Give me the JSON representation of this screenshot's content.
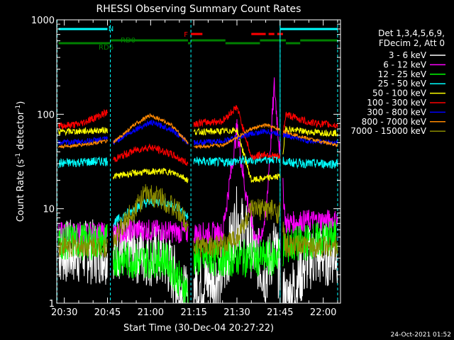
{
  "chart_data": {
    "type": "line",
    "title": "RHESSI Observing Summary Count Rates",
    "xlabel": "Start Time (30-Dec-04 20:27:22)",
    "ylabel": "Count Rate (s",
    "ylabel_sup": "-1",
    "ylabel_tail": " detector",
    "ylabel_close": ")",
    "y_scale": "log",
    "ylim": [
      1,
      1000
    ],
    "xlim": [
      "20:27:22",
      "22:06:00"
    ],
    "x_ticks": [
      "20:30",
      "20:45",
      "21:00",
      "21:15",
      "21:30",
      "21:45",
      "22:00"
    ],
    "y_ticks": [
      "1",
      "10",
      "100",
      "1000"
    ],
    "legend_position": "right",
    "legend_header": [
      "Det 1,3,4,5,6,9,",
      "FDecim 2, Att 0"
    ],
    "footer_date": "24-Oct-2021 01:52",
    "state_bars": {
      "N_label": "N",
      "F_label": "F",
      "RD0_label": "RD0",
      "RD6_label": "RD6",
      "N": [
        [
          "20:28",
          "20:45"
        ],
        [
          "21:45",
          "22:05"
        ]
      ],
      "F": [
        [
          "21:14",
          "21:18"
        ],
        [
          "21:35",
          "21:40"
        ],
        [
          "21:41",
          "21:43"
        ],
        [
          "21:44",
          "21:46"
        ]
      ],
      "RD0": [
        [
          "20:46",
          "21:13"
        ],
        [
          "21:14",
          "21:26"
        ],
        [
          "21:38",
          "21:47"
        ],
        [
          "21:52",
          "22:05"
        ]
      ],
      "RD6": [
        [
          "20:28",
          "20:46"
        ],
        [
          "21:13",
          "21:14"
        ],
        [
          "21:26",
          "21:38"
        ],
        [
          "21:47",
          "21:52"
        ]
      ]
    },
    "time_markers": [
      "20:27:30",
      "20:46",
      "21:14",
      "21:45",
      "22:05"
    ],
    "gaps": [
      [
        "20:45",
        "20:47"
      ],
      [
        "21:13",
        "21:15"
      ],
      [
        "21:45",
        "21:46"
      ]
    ],
    "series": [
      {
        "name": "3 - 6 keV",
        "color": "#ffffff",
        "x": [
          "20:27",
          "20:35",
          "20:45",
          "20:47",
          "20:55",
          "21:05",
          "21:13",
          "21:15",
          "21:25",
          "21:30",
          "21:35",
          "21:40",
          "21:43",
          "21:47",
          "21:55",
          "22:05"
        ],
        "values": [
          3.5,
          3.5,
          3.5,
          4,
          3.5,
          3,
          1,
          1.5,
          2,
          8,
          4,
          2,
          4,
          1,
          3,
          3.5
        ],
        "noise": 0.35
      },
      {
        "name": "6 - 12 keV",
        "color": "#ff00ff",
        "x": [
          "20:27",
          "20:35",
          "20:45",
          "20:47",
          "20:55",
          "21:05",
          "21:13",
          "21:15",
          "21:25",
          "21:30",
          "21:33",
          "21:37",
          "21:40",
          "21:43",
          "21:47",
          "21:55",
          "22:05"
        ],
        "values": [
          5.5,
          5.5,
          5.5,
          5.5,
          6,
          5.8,
          5.5,
          5.5,
          5.5,
          70,
          15,
          4,
          8,
          200,
          7,
          7.5,
          7.5
        ],
        "noise": 0.12
      },
      {
        "name": "12 - 25 keV",
        "color": "#00ff00",
        "x": [
          "20:27",
          "20:35",
          "20:45",
          "20:47",
          "20:55",
          "21:05",
          "21:13",
          "21:15",
          "21:25",
          "21:30",
          "21:35",
          "21:40",
          "21:43",
          "21:47",
          "21:55",
          "22:05"
        ],
        "values": [
          4.5,
          4.5,
          4.5,
          3,
          2.8,
          3,
          1.3,
          3,
          3,
          3,
          3,
          3,
          3,
          4,
          4.5,
          5
        ],
        "noise": 0.2
      },
      {
        "name": "25 - 50 keV",
        "color": "#00ffff",
        "x": [
          "20:27",
          "20:35",
          "20:45",
          "20:47",
          "20:52",
          "20:58",
          "21:04",
          "21:10",
          "21:13",
          "21:15",
          "21:25",
          "21:35",
          "21:45",
          "21:47",
          "21:55",
          "22:05"
        ],
        "values": [
          30,
          31,
          32,
          7,
          9,
          11.5,
          12,
          10,
          8,
          32,
          31,
          33,
          34,
          31,
          30,
          30
        ],
        "noise": 0.05
      },
      {
        "name": "50 - 100 keV",
        "color": "#ffff00",
        "x": [
          "20:27",
          "20:35",
          "20:45",
          "20:47",
          "20:55",
          "21:05",
          "21:10",
          "21:13",
          "21:15",
          "21:25",
          "21:30",
          "21:35",
          "21:40",
          "21:45",
          "21:47",
          "21:55",
          "22:05"
        ],
        "values": [
          65,
          66,
          68,
          22,
          24,
          25,
          23,
          20,
          65,
          66,
          68,
          20,
          21,
          22,
          70,
          65,
          63
        ],
        "noise": 0.035
      },
      {
        "name": "100 - 300 keV",
        "color": "#ff0000",
        "x": [
          "20:27",
          "20:35",
          "20:45",
          "20:47",
          "20:55",
          "21:00",
          "21:07",
          "21:13",
          "21:15",
          "21:25",
          "21:30",
          "21:35",
          "21:40",
          "21:45",
          "21:47",
          "21:55",
          "22:05"
        ],
        "values": [
          75,
          78,
          105,
          33,
          42,
          45,
          38,
          30,
          80,
          85,
          120,
          35,
          38,
          35,
          100,
          82,
          76
        ],
        "noise": 0.04
      },
      {
        "name": "300 - 800 keV",
        "color": "#0000ff",
        "x": [
          "20:27",
          "20:35",
          "20:45",
          "20:47",
          "20:55",
          "21:00",
          "21:07",
          "21:13",
          "21:15",
          "21:25",
          "21:35",
          "21:40",
          "21:47",
          "21:55",
          "22:05"
        ],
        "values": [
          50,
          51,
          55,
          50,
          70,
          82,
          70,
          50,
          50,
          52,
          62,
          66,
          60,
          52,
          50
        ],
        "noise": 0.03
      },
      {
        "name": "800 - 7000 keV",
        "color": "#ff8800",
        "x": [
          "20:27",
          "20:35",
          "20:45",
          "20:47",
          "20:55",
          "21:00",
          "21:07",
          "21:13",
          "21:15",
          "21:25",
          "21:35",
          "21:40",
          "21:47",
          "21:55",
          "22:05"
        ],
        "values": [
          45,
          47,
          52,
          50,
          80,
          98,
          78,
          50,
          45,
          47,
          70,
          77,
          65,
          55,
          47
        ],
        "noise": 0.02
      },
      {
        "name": "7000 - 15000 keV",
        "color": "#8b8b00",
        "x": [
          "20:27",
          "20:35",
          "20:45",
          "20:47",
          "20:52",
          "20:58",
          "21:04",
          "21:10",
          "21:13",
          "21:15",
          "21:25",
          "21:30",
          "21:35",
          "21:40",
          "21:45",
          "21:47",
          "21:55",
          "22:05"
        ],
        "values": [
          4,
          4,
          4,
          4.5,
          8,
          14,
          13,
          9,
          7,
          4,
          4,
          5,
          9.5,
          10,
          9,
          4,
          4,
          4
        ],
        "noise": 0.12
      }
    ]
  }
}
